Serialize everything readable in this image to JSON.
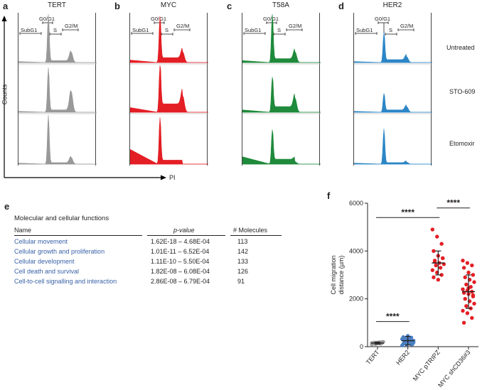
{
  "panels": [
    {
      "letter": "a",
      "title": "TERT",
      "color": "#999999"
    },
    {
      "letter": "b",
      "title": "MYC",
      "color": "#e31e24"
    },
    {
      "letter": "c",
      "title": "T58A",
      "color": "#1f8a3b"
    },
    {
      "letter": "d",
      "title": "HER2",
      "color": "#2c86c6"
    }
  ],
  "gate_labels": {
    "subg1": "SubG1",
    "g0g1": "G0/G1",
    "s": "S",
    "g2m": "G2/M"
  },
  "conditions": [
    "Untreated",
    "STO-609",
    "Etomoxir"
  ],
  "axes": {
    "y": "Counts",
    "x": "PI"
  },
  "table": {
    "letter": "e",
    "title": "Molecular and cellular functions",
    "headers": {
      "name": "Name",
      "pvalue": "p-value",
      "molecules": "# Molecules"
    },
    "rows": [
      {
        "name": "Cellular movement",
        "pvalue": "1.62E-18 – 4.68E-04",
        "molecules": "113"
      },
      {
        "name": "Cellular growth and proliferation",
        "pvalue": "1.01E-11 – 6.52E-04",
        "molecules": "142"
      },
      {
        "name": "Cellular development",
        "pvalue": "1.11E-10 – 5.50E-04",
        "molecules": "133"
      },
      {
        "name": "Cell death and survival",
        "pvalue": "1.82E-08 – 6.08E-04",
        "molecules": "126"
      },
      {
        "name": "Cell-to-cell signalling and interaction",
        "pvalue": "2.86E-08 – 6.79E-04",
        "molecules": "91"
      }
    ]
  },
  "chart_data": {
    "letter": "f",
    "type": "scatter",
    "ylabel": "Cell migration distance (µm)",
    "ylim": [
      0,
      6000
    ],
    "yticks": [
      0,
      2000,
      4000,
      6000
    ],
    "categories": [
      "TERT",
      "HER2",
      "MYC pTRIPZ",
      "MYC shCD36#3"
    ],
    "colors": [
      "#999999",
      "#4a7fc1",
      "#e31e24",
      "#e31e24"
    ],
    "series": [
      {
        "name": "TERT",
        "mean": 150,
        "sd": 40,
        "values": [
          100,
          120,
          130,
          140,
          150,
          160,
          170,
          180,
          200,
          110,
          130,
          150,
          170,
          190
        ]
      },
      {
        "name": "HER2",
        "mean": 250,
        "sd": 180,
        "values": [
          50,
          80,
          100,
          120,
          150,
          170,
          200,
          220,
          250,
          280,
          300,
          320,
          350,
          380,
          400,
          450,
          100,
          200,
          300,
          180,
          260,
          340
        ]
      },
      {
        "name": "MYC pTRIPZ",
        "mean": 3500,
        "sd": 500,
        "values": [
          4900,
          4600,
          4300,
          4000,
          3800,
          3700,
          3600,
          3500,
          3450,
          3400,
          3300,
          3200,
          3100,
          3000,
          2900,
          2800,
          3700,
          3550
        ]
      },
      {
        "name": "MYC shCD36#3",
        "mean": 2300,
        "sd": 700,
        "values": [
          3600,
          3500,
          3400,
          3300,
          3100,
          3000,
          2900,
          2800,
          2700,
          2600,
          2500,
          2400,
          2350,
          2300,
          2250,
          2200,
          2100,
          2000,
          1900,
          1800,
          1700,
          1600,
          1500,
          1400,
          1200,
          1000,
          2450,
          2150
        ]
      }
    ],
    "significance": [
      {
        "label": "****",
        "between": [
          "TERT",
          "MYC pTRIPZ"
        ]
      },
      {
        "label": "****",
        "between": [
          "MYC pTRIPZ",
          "MYC shCD36#3"
        ]
      },
      {
        "label": "****",
        "between": [
          "TERT",
          "HER2"
        ]
      }
    ]
  }
}
